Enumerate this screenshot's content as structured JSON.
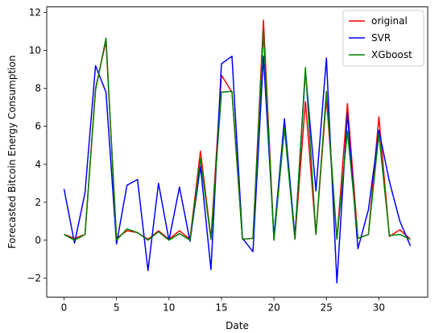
{
  "chart_data": {
    "type": "line",
    "xlabel": "Date",
    "ylabel": "Forecasted Bitcoin Energy Consumption",
    "xlim": [
      -1.65,
      34.65
    ],
    "ylim": [
      -3.0,
      12.3
    ],
    "xticks": [
      0,
      5,
      10,
      15,
      20,
      25,
      30
    ],
    "yticks": [
      -2,
      0,
      2,
      4,
      6,
      8,
      10,
      12
    ],
    "grid": false,
    "legend_position": "top-right",
    "x": [
      0,
      1,
      2,
      3,
      4,
      5,
      6,
      7,
      8,
      9,
      10,
      11,
      12,
      13,
      14,
      15,
      16,
      17,
      18,
      19,
      20,
      21,
      22,
      23,
      24,
      25,
      26,
      27,
      28,
      29,
      30,
      31,
      32,
      33
    ],
    "series": [
      {
        "name": "original",
        "color": "#ff0000",
        "values": [
          0.3,
          0.1,
          0.3,
          8.0,
          10.5,
          0.1,
          0.5,
          0.4,
          0.05,
          0.5,
          0.05,
          0.5,
          0.05,
          4.7,
          0.1,
          8.7,
          7.8,
          0.05,
          0.1,
          11.6,
          0.05,
          6.1,
          0.05,
          7.3,
          0.3,
          7.5,
          0.05,
          7.2,
          0.1,
          0.3,
          6.5,
          0.2,
          0.55,
          0.05
        ]
      },
      {
        "name": "SVR",
        "color": "#0000ff",
        "values": [
          2.7,
          -0.15,
          2.5,
          9.2,
          7.8,
          -0.2,
          2.9,
          3.2,
          -1.6,
          3.0,
          0.0,
          2.8,
          -0.05,
          3.9,
          -1.55,
          9.3,
          9.7,
          0.1,
          -0.6,
          9.7,
          0.2,
          6.4,
          0.2,
          8.9,
          2.6,
          9.6,
          -2.25,
          6.7,
          -0.45,
          1.6,
          5.8,
          3.1,
          1.0,
          -0.3
        ]
      },
      {
        "name": "XGboost",
        "color": "#008000",
        "values": [
          0.3,
          0.0,
          0.3,
          7.9,
          10.65,
          0.0,
          0.6,
          0.4,
          0.0,
          0.45,
          0.0,
          0.35,
          0.0,
          4.3,
          0.05,
          7.8,
          7.85,
          0.05,
          0.1,
          11.0,
          0.0,
          5.9,
          0.05,
          9.1,
          0.3,
          7.85,
          0.05,
          5.75,
          0.1,
          0.3,
          5.6,
          0.25,
          0.3,
          0.05
        ]
      }
    ]
  }
}
